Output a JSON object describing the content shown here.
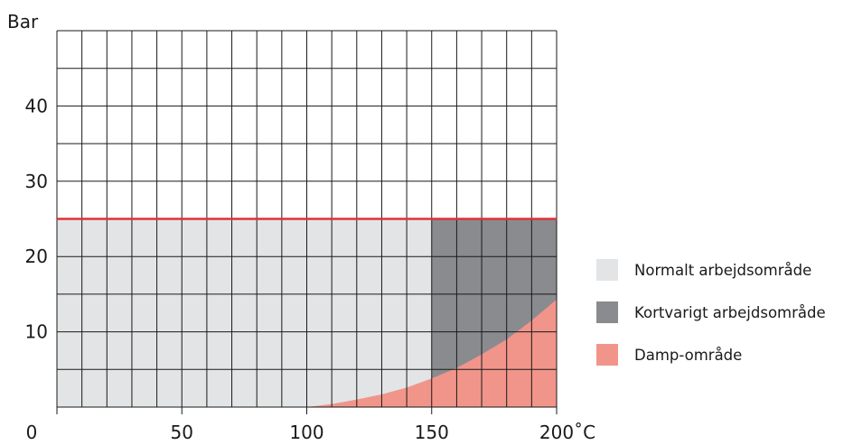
{
  "chart_data": {
    "type": "area",
    "ylabel": "Bar",
    "x_ticks": [
      0,
      50,
      100,
      150,
      200
    ],
    "x_tick_labels": [
      "0",
      "50",
      "100",
      "150",
      "200˚C"
    ],
    "y_ticks": [
      10,
      20,
      30,
      40
    ],
    "y_tick_labels": [
      "10",
      "20",
      "30",
      "40"
    ],
    "xlim": [
      0,
      200
    ],
    "ylim": [
      0,
      50
    ],
    "grid": true,
    "legend_position": "right",
    "max_pressure_line": 25,
    "regions": [
      {
        "name": "Normalt arbejdsområde",
        "x_range": [
          0,
          150
        ],
        "y_range": [
          0,
          25
        ],
        "color": "#e3e4e6"
      },
      {
        "name": "Kortvarigt arbejdsområde",
        "x_range": [
          150,
          200
        ],
        "y_range": [
          0,
          25
        ],
        "color": "#8a8b8e"
      }
    ],
    "steam_curve": {
      "name": "Damp-område",
      "color": "#f1958a",
      "x": [
        100,
        110,
        120,
        130,
        140,
        150,
        160,
        170,
        180,
        190,
        200
      ],
      "y": [
        0,
        0.4,
        1.0,
        1.7,
        2.6,
        3.8,
        5.2,
        7.0,
        9.0,
        11.5,
        14.3
      ]
    }
  },
  "colors": {
    "grid": "#1a1a1a",
    "max_line": "#e0303d",
    "normal": "#e3e4e6",
    "short": "#8a8b8e",
    "steam": "#f1958a"
  },
  "legend": [
    {
      "label": "Normalt arbejdsområde",
      "color": "#e3e4e6"
    },
    {
      "label": "Kortvarigt arbejdsområde",
      "color": "#8a8b8e"
    },
    {
      "label": "Damp-område",
      "color": "#f1958a"
    }
  ]
}
